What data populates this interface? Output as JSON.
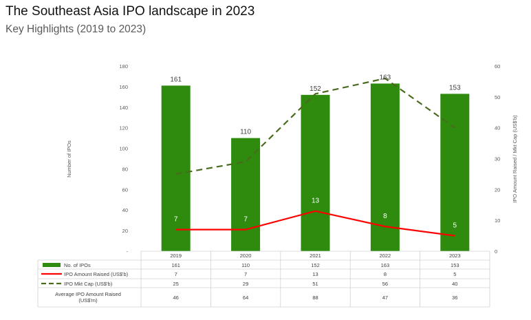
{
  "header": {
    "title": "The Southeast Asia IPO landscape in 2023",
    "subtitle": "Key Highlights (2019 to 2023)"
  },
  "chart_data": {
    "type": "bar",
    "title": "The Southeast Asia IPO landscape in 2023",
    "subtitle": "Key Highlights (2019 to 2023)",
    "categories": [
      "2019",
      "2020",
      "2021",
      "2022",
      "2023"
    ],
    "ylabel": "Number of IPOs",
    "y2label": "IPO Amount Raised / Mkt Cap (US$'b)",
    "ylim": [
      0,
      180
    ],
    "y2lim": [
      0,
      60
    ],
    "yticks": [
      "-",
      "20",
      "40",
      "60",
      "80",
      "100",
      "120",
      "140",
      "160",
      "180"
    ],
    "y2ticks": [
      "0",
      "10",
      "20",
      "30",
      "40",
      "50",
      "60"
    ],
    "series": [
      {
        "name": "No. of IPOs",
        "type": "bar",
        "axis": "left",
        "color": "#2e8b0e",
        "values": [
          161,
          110,
          152,
          163,
          153
        ]
      },
      {
        "name": "IPO Amount Raised (US$'b)",
        "type": "line",
        "axis": "right",
        "color": "#ff0000",
        "values": [
          7,
          7,
          13,
          8,
          5
        ]
      },
      {
        "name": "IPO Mkt Cap (US$'b)",
        "type": "line-dashed",
        "axis": "right",
        "color": "#4a6b1e",
        "values": [
          25,
          29,
          51,
          56,
          40
        ]
      }
    ],
    "table": {
      "extra_row_label": "Average IPO Amount Raised (US$'m)",
      "extra_row_values": [
        "46",
        "64",
        "88",
        "47",
        "36"
      ]
    }
  }
}
